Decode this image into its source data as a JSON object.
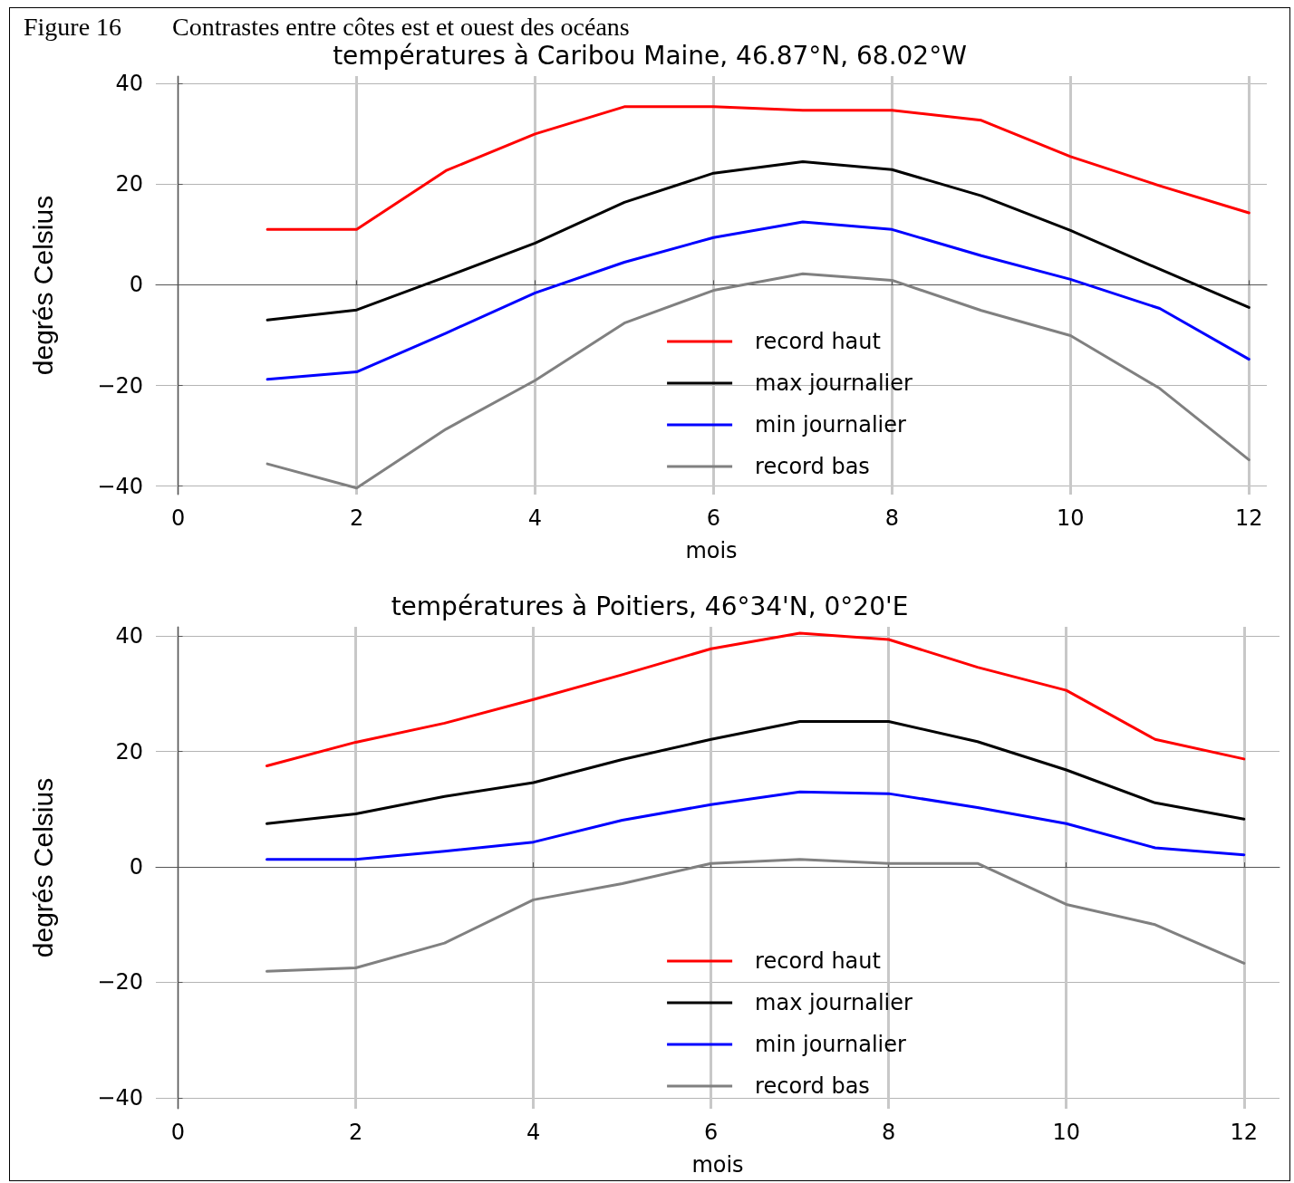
{
  "chart_data": [
    {
      "type": "line",
      "title": "températures à Caribou Maine, 46.87°N, 68.02°W",
      "xlabel": "mois",
      "ylabel": "degrés Celsius",
      "annotations": [
        "Figure 16",
        "Contrastes entre côtes est et ouest des océans"
      ],
      "x": [
        1,
        2,
        3,
        4,
        5,
        6,
        7,
        8,
        9,
        10,
        11,
        12
      ],
      "series": [
        {
          "name": "record haut",
          "color": "#ff0000",
          "values": [
            11.0,
            11.0,
            22.7,
            30.0,
            35.4,
            35.4,
            34.7,
            34.7,
            32.7,
            25.5,
            19.7,
            14.3
          ]
        },
        {
          "name": "max journalier",
          "color": "#000000",
          "values": [
            -7.0,
            -5.0,
            1.6,
            8.3,
            16.4,
            22.2,
            24.5,
            22.9,
            17.7,
            10.8,
            3.1,
            -4.5
          ]
        },
        {
          "name": "min journalier",
          "color": "#0000ff",
          "values": [
            -18.8,
            -17.3,
            -9.6,
            -1.6,
            4.5,
            9.4,
            12.5,
            11.0,
            5.8,
            1.1,
            -4.7,
            -14.8
          ]
        },
        {
          "name": "record bas",
          "color": "#808080",
          "values": [
            -35.6,
            -40.4,
            -28.7,
            -19.0,
            -7.6,
            -1.1,
            2.2,
            0.9,
            -5.1,
            -10.1,
            -20.6,
            -34.8
          ]
        }
      ],
      "xlim": [
        -0.25,
        12.2
      ],
      "ylim": [
        -41.7,
        41.5
      ],
      "xticks": [
        0,
        2,
        4,
        6,
        8,
        10,
        12
      ],
      "yticks": [
        -40,
        -20,
        0,
        20,
        40
      ],
      "grid": true,
      "legend": "bottom right",
      "marker": "none",
      "line_style": "solid"
    },
    {
      "type": "line",
      "title": "températures à Poitiers, 46°34'N, 0°20'E",
      "xlabel": "mois",
      "ylabel": "degrés Celsius",
      "x": [
        1,
        2,
        3,
        4,
        5,
        6,
        7,
        8,
        9,
        10,
        11,
        12
      ],
      "series": [
        {
          "name": "record haut",
          "color": "#ff0000",
          "values": [
            17.5,
            21.6,
            24.9,
            29.0,
            33.3,
            37.8,
            40.5,
            39.4,
            34.6,
            30.6,
            22.1,
            18.7
          ]
        },
        {
          "name": "max journalier",
          "color": "#000000",
          "values": [
            7.5,
            9.2,
            12.2,
            14.6,
            18.6,
            22.1,
            25.2,
            25.2,
            21.7,
            16.8,
            11.1,
            8.3
          ]
        },
        {
          "name": "min journalier",
          "color": "#0000ff",
          "values": [
            1.3,
            1.3,
            2.7,
            4.3,
            8.1,
            10.8,
            13.0,
            12.7,
            10.3,
            7.5,
            3.3,
            2.1
          ]
        },
        {
          "name": "record bas",
          "color": "#808080",
          "values": [
            -18.1,
            -17.5,
            -13.2,
            -5.7,
            -2.9,
            0.6,
            1.3,
            0.6,
            0.6,
            -6.5,
            -10.0,
            -16.7
          ]
        }
      ],
      "xlim": [
        -0.25,
        12.4
      ],
      "ylim": [
        -41.9,
        41.6
      ],
      "xticks": [
        0,
        2,
        4,
        6,
        8,
        10,
        12
      ],
      "yticks": [
        -40,
        -20,
        0,
        20,
        40
      ],
      "grid": true,
      "legend": "bottom right",
      "marker": "none",
      "line_style": "solid"
    }
  ]
}
